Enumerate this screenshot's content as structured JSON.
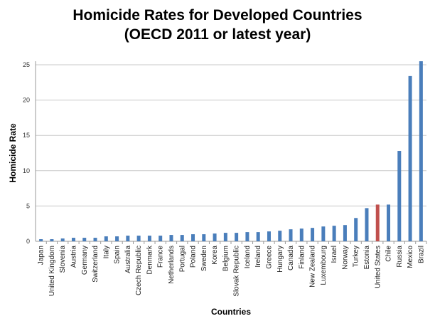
{
  "chart_data": {
    "type": "bar",
    "title": "Homicide Rates for Developed Countries",
    "subtitle": "(OECD 2011 or latest year)",
    "xlabel": "Countries",
    "ylabel": "Homicide Rate",
    "ylim": [
      0,
      25
    ],
    "yticks": [
      0,
      5,
      10,
      15,
      20,
      25
    ],
    "grid": true,
    "colors": {
      "default": "#4a7ebb",
      "highlight": "#c0504d"
    },
    "highlight": "United States",
    "categories": [
      "Japan",
      "United Kingdom",
      "Slovenia",
      "Austria",
      "Germany",
      "Switzerland",
      "Italy",
      "Spain",
      "Australia",
      "Czech Republic",
      "Denmark",
      "France",
      "Netherlands",
      "Portugal",
      "Poland",
      "Sweden",
      "Korea",
      "Belgium",
      "Slovak Republic",
      "Iceland",
      "Ireland",
      "Greece",
      "Hungary",
      "Canada",
      "Finland",
      "New Zealand",
      "Luxembourg",
      "Israel",
      "Norway",
      "Turkey",
      "Estonia",
      "United States",
      "Chile",
      "Russia",
      "Mexico",
      "Brazil"
    ],
    "values": [
      0.3,
      0.3,
      0.4,
      0.5,
      0.5,
      0.5,
      0.7,
      0.7,
      0.8,
      0.8,
      0.8,
      0.8,
      0.9,
      0.9,
      1.0,
      1.0,
      1.1,
      1.2,
      1.2,
      1.3,
      1.3,
      1.4,
      1.5,
      1.7,
      1.8,
      1.9,
      2.1,
      2.2,
      2.3,
      3.3,
      4.7,
      5.2,
      5.2,
      12.8,
      23.4,
      25.5
    ]
  }
}
